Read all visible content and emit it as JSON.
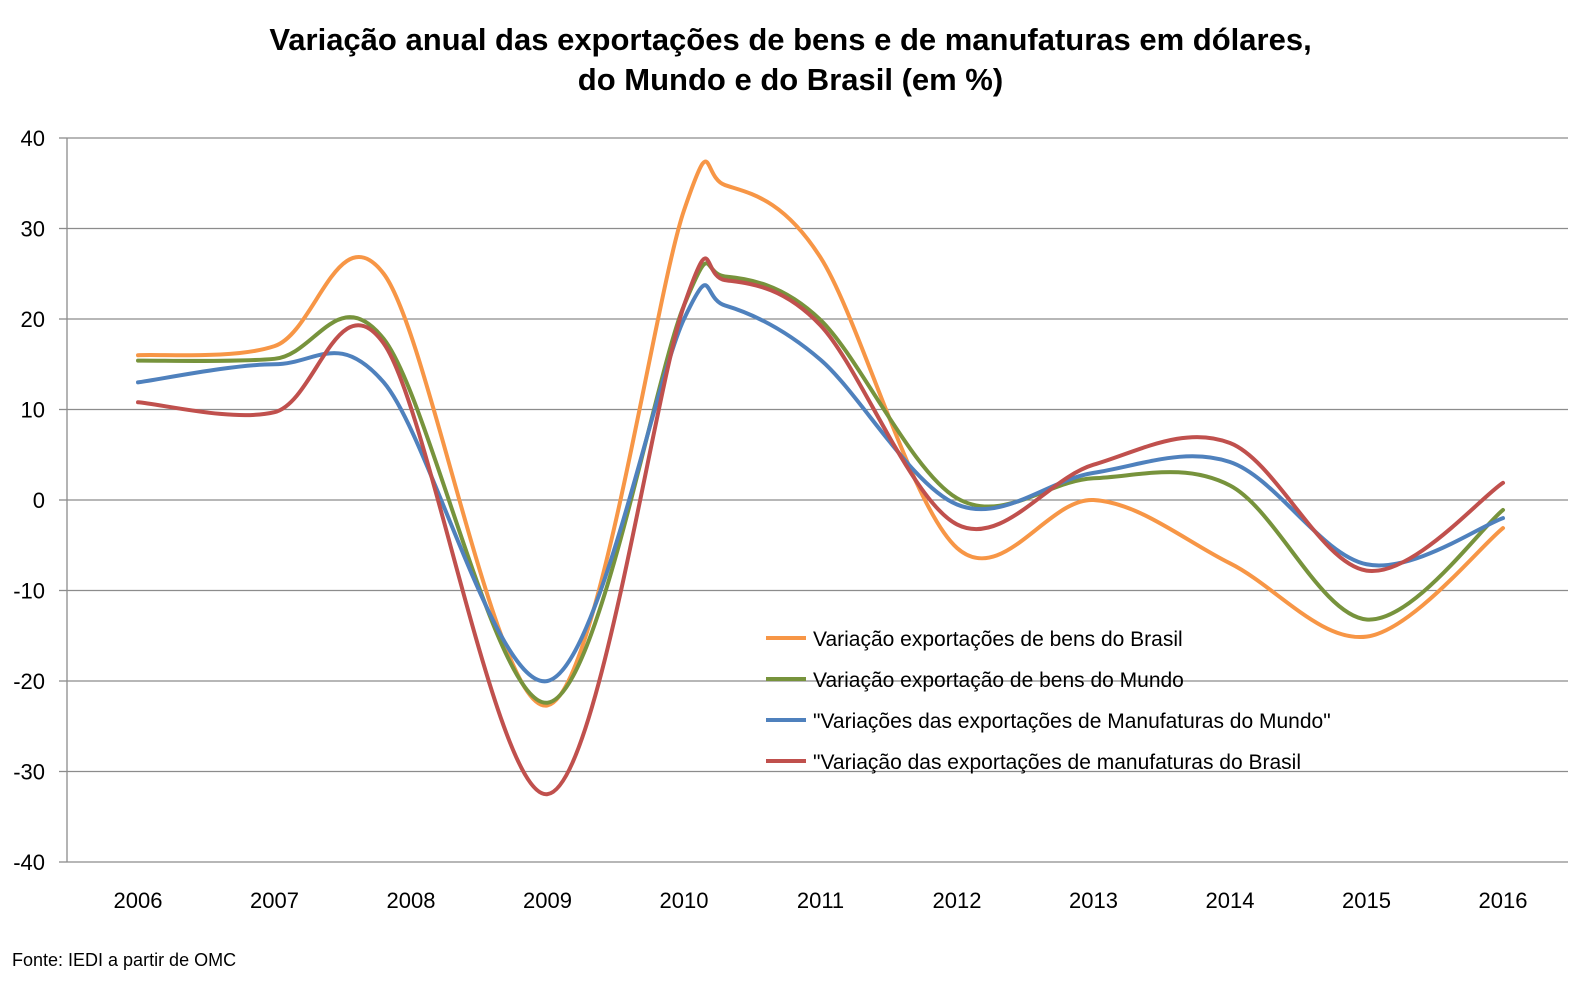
{
  "chart_data": {
    "type": "line",
    "title": "Variação anual das exportações de bens e de manufaturas em dólares,",
    "title_line2": "do Mundo e do Brasil (em %)",
    "source": "Fonte: IEDI a partir de OMC",
    "xlabel": "",
    "ylabel": "",
    "categories": [
      "2006",
      "2007",
      "2008",
      "2009",
      "2010",
      "2011",
      "2012",
      "2013",
      "2014",
      "2015",
      "2016"
    ],
    "ylim": [
      -40,
      40
    ],
    "yticks": [
      40,
      30,
      20,
      10,
      0,
      -10,
      -20,
      -30,
      -40
    ],
    "ytick_labels": [
      "40",
      "30",
      "20",
      "10",
      "0",
      "-10",
      "-20",
      "-30",
      "-40"
    ],
    "grid": true,
    "smooth": true,
    "legend_position": "lower-center",
    "series": [
      {
        "name": "Variação exportações de bens do Brasil",
        "color": "#F79646",
        "points": [
          [
            "2006",
            16
          ],
          [
            "2007",
            17
          ],
          [
            "2007.8",
            25
          ],
          [
            "2009",
            -22.7
          ],
          [
            "2010",
            32
          ],
          [
            "2010.3",
            34.8
          ],
          [
            "2011",
            26.8
          ],
          [
            "2012",
            -5.3
          ],
          [
            "2013",
            0
          ],
          [
            "2014",
            -7
          ],
          [
            "2015",
            -15.1
          ],
          [
            "2016",
            -3.1
          ]
        ]
      },
      {
        "name": "Variação exportação de bens do Mundo",
        "color": "#77933C",
        "points": [
          [
            "2006",
            15.4
          ],
          [
            "2007",
            15.6
          ],
          [
            "2007.8",
            17.8
          ],
          [
            "2009",
            -22.4
          ],
          [
            "2010",
            21.5
          ],
          [
            "2010.3",
            24.7
          ],
          [
            "2011",
            19.9
          ],
          [
            "2012",
            0.2
          ],
          [
            "2013",
            2.4
          ],
          [
            "2014",
            1.6
          ],
          [
            "2015",
            -13.2
          ],
          [
            "2016",
            -1.1
          ]
        ]
      },
      {
        "name": "\"Variações das exportações de Manufaturas do Mundo\"",
        "color": "#4F81BD",
        "points": [
          [
            "2006",
            13
          ],
          [
            "2007",
            15
          ],
          [
            "2007.8",
            13
          ],
          [
            "2009",
            -20
          ],
          [
            "2010",
            20
          ],
          [
            "2010.3",
            21.5
          ],
          [
            "2011",
            15.5
          ],
          [
            "2012",
            -0.5
          ],
          [
            "2013",
            3
          ],
          [
            "2014",
            4.2
          ],
          [
            "2015",
            -7.1
          ],
          [
            "2016",
            -2
          ]
        ]
      },
      {
        "name": "\"Variação das exportações de manufaturas do Brasil",
        "color": "#C0504D",
        "points": [
          [
            "2006",
            10.8
          ],
          [
            "2007",
            9.7
          ],
          [
            "2007.8",
            17.3
          ],
          [
            "2009",
            -32.5
          ],
          [
            "2010",
            21.5
          ],
          [
            "2010.3",
            24.3
          ],
          [
            "2011",
            19.3
          ],
          [
            "2012",
            -2.7
          ],
          [
            "2013",
            3.9
          ],
          [
            "2014",
            6.3
          ],
          [
            "2015",
            -7.8
          ],
          [
            "2016",
            1.9
          ]
        ]
      }
    ]
  }
}
